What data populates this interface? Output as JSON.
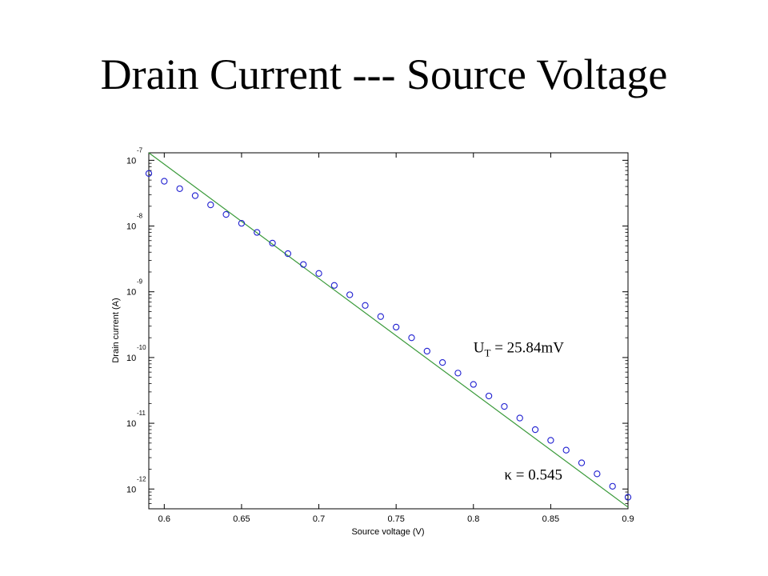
{
  "title": "Drain Current --- Source Voltage",
  "chart_data": {
    "type": "scatter",
    "xlabel": "Source voltage (V)",
    "ylabel": "Drain current (A)",
    "xlim": [
      0.59,
      0.9
    ],
    "ylim": [
      5e-13,
      1.3e-07
    ],
    "y_scale": "log",
    "grid": false,
    "x_ticks": [
      "0.6",
      "0.65",
      "0.7",
      "0.75",
      "0.8",
      "0.85",
      "0.9"
    ],
    "x_tick_values": [
      0.6,
      0.65,
      0.7,
      0.75,
      0.8,
      0.85,
      0.9
    ],
    "y_ticks": [
      {
        "base": "10",
        "exp": "-7",
        "value": 1e-07
      },
      {
        "base": "10",
        "exp": "-8",
        "value": 1e-08
      },
      {
        "base": "10",
        "exp": "-9",
        "value": 1e-09
      },
      {
        "base": "10",
        "exp": "-10",
        "value": 1e-10
      },
      {
        "base": "10",
        "exp": "-11",
        "value": 1e-11
      },
      {
        "base": "10",
        "exp": "-12",
        "value": 1e-12
      }
    ],
    "series": [
      {
        "kind": "points",
        "marker": "circle",
        "color": "#1f1fd0",
        "x": [
          0.59,
          0.6,
          0.61,
          0.62,
          0.63,
          0.64,
          0.65,
          0.66,
          0.67,
          0.68,
          0.69,
          0.7,
          0.71,
          0.72,
          0.73,
          0.74,
          0.75,
          0.76,
          0.77,
          0.78,
          0.79,
          0.8,
          0.81,
          0.82,
          0.83,
          0.84,
          0.85,
          0.86,
          0.87,
          0.88,
          0.89,
          0.9
        ],
        "y": [
          6.3e-08,
          4.8e-08,
          3.7e-08,
          2.9e-08,
          2.1e-08,
          1.5e-08,
          1.1e-08,
          8e-09,
          5.5e-09,
          3.8e-09,
          2.6e-09,
          1.9e-09,
          1.25e-09,
          9e-10,
          6.2e-10,
          4.2e-10,
          2.9e-10,
          2e-10,
          1.25e-10,
          8.4e-11,
          5.8e-11,
          3.9e-11,
          2.6e-11,
          1.8e-11,
          1.2e-11,
          8e-12,
          5.5e-12,
          3.9e-12,
          2.5e-12,
          1.7e-12,
          1.1e-12,
          7.5e-13
        ]
      },
      {
        "kind": "fit-line",
        "color": "#3a9a3a",
        "x": [
          0.59,
          0.9
        ],
        "y": [
          1.3e-07,
          5.3e-13
        ]
      }
    ],
    "annotations": [
      {
        "id": "ut",
        "text": "U",
        "sub": "T",
        "rest": " = 25.84mV",
        "x": 0.8,
        "y": 1.2e-10
      },
      {
        "id": "kappa",
        "symbol": "κ",
        "rest": " = 0.545",
        "x": 0.82,
        "y": 1.4e-12
      }
    ]
  }
}
